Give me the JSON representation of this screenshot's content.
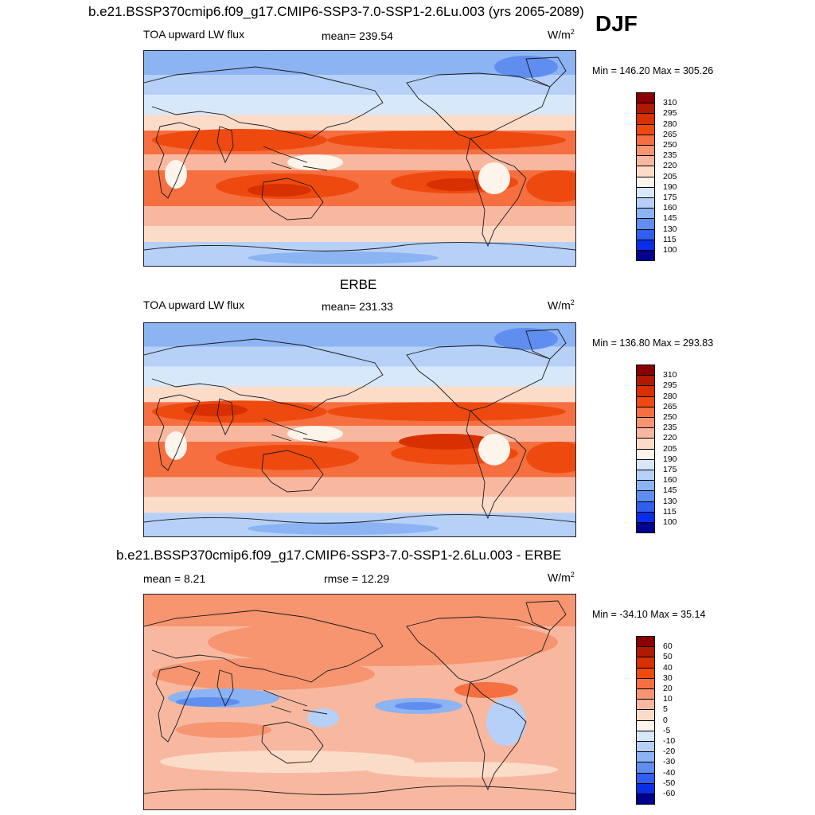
{
  "season": "DJF",
  "panels": [
    {
      "id": "model",
      "title": "b.e21.BSSP370cmip6.f09_g17.CMIP6-SSP3-7.0-SSP1-2.6Lu.003 (yrs 2065-2089)",
      "left_label": "TOA upward LW flux",
      "center_label": "mean= 239.54",
      "units": "W/m",
      "units_sup": "2",
      "minmax": "Min = 146.20 Max = 305.26",
      "levels": [
        "310",
        "295",
        "280",
        "265",
        "250",
        "235",
        "220",
        "205",
        "190",
        "175",
        "160",
        "145",
        "130",
        "115",
        "100"
      ],
      "colors": [
        "#8b0000",
        "#b01a00",
        "#d83000",
        "#ee4a10",
        "#f56f40",
        "#f79570",
        "#f8b8a0",
        "#fbdcc9",
        "#fdf4ec",
        "#d8e8fb",
        "#b6d0f8",
        "#8cb3f2",
        "#5f8ef0",
        "#2f5ef0",
        "#0a2ee6",
        "#000090"
      ],
      "map_style": "model"
    },
    {
      "id": "obs",
      "title": "ERBE",
      "left_label": "TOA upward LW flux",
      "center_label": "mean= 231.33",
      "units": "W/m",
      "units_sup": "2",
      "minmax": "Min = 136.80 Max = 293.83",
      "levels": [
        "310",
        "295",
        "280",
        "265",
        "250",
        "235",
        "220",
        "205",
        "190",
        "175",
        "160",
        "145",
        "130",
        "115",
        "100"
      ],
      "colors": [
        "#8b0000",
        "#b01a00",
        "#d83000",
        "#ee4a10",
        "#f56f40",
        "#f79570",
        "#f8b8a0",
        "#fbdcc9",
        "#fdf4ec",
        "#d8e8fb",
        "#b6d0f8",
        "#8cb3f2",
        "#5f8ef0",
        "#2f5ef0",
        "#0a2ee6",
        "#000090"
      ],
      "map_style": "obs"
    },
    {
      "id": "diff",
      "title": "b.e21.BSSP370cmip6.f09_g17.CMIP6-SSP3-7.0-SSP1-2.6Lu.003 - ERBE",
      "left_label": "mean =   8.21",
      "center_label": "rmse =  12.29",
      "units": "W/m",
      "units_sup": "2",
      "minmax": "Min = -34.10 Max =  35.14",
      "levels": [
        "60",
        "50",
        "40",
        "30",
        "20",
        "10",
        "5",
        "0",
        "-5",
        "-10",
        "-20",
        "-30",
        "-40",
        "-50",
        "-60"
      ],
      "colors": [
        "#8b0000",
        "#b01a00",
        "#d83000",
        "#ee4a10",
        "#f56f40",
        "#f79570",
        "#f8b8a0",
        "#fbdcc9",
        "#fdf4ec",
        "#d8e8fb",
        "#b6d0f8",
        "#8cb3f2",
        "#5f8ef0",
        "#2f5ef0",
        "#0a2ee6",
        "#000090"
      ],
      "map_style": "diff"
    }
  ]
}
